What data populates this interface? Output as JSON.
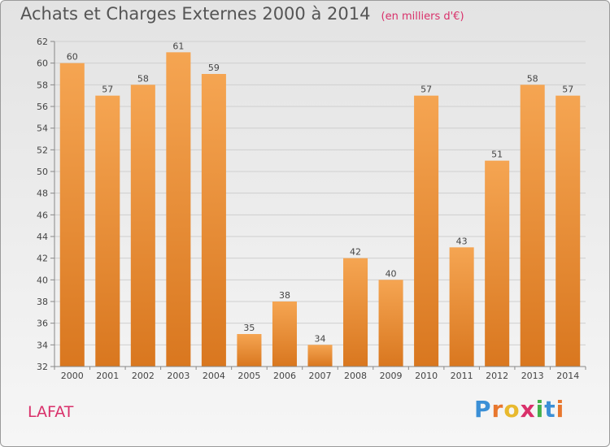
{
  "header": {
    "title": "Achats et Charges Externes 2000 à 2014",
    "unit": "(en milliers d'€)"
  },
  "footer": {
    "place": "LAFAT",
    "brand": "Proxiti",
    "brand_letters": [
      "P",
      "r",
      "o",
      "x",
      "i",
      "t",
      "i"
    ],
    "brand_colors": [
      "#3b8fd6",
      "#e8772e",
      "#e8b92e",
      "#d9306a",
      "#43b04a",
      "#3b8fd6",
      "#e8772e"
    ]
  },
  "chart_data": {
    "type": "bar",
    "categories": [
      "2000",
      "2001",
      "2002",
      "2003",
      "2004",
      "2005",
      "2006",
      "2007",
      "2008",
      "2009",
      "2010",
      "2011",
      "2012",
      "2013",
      "2014"
    ],
    "values": [
      60,
      57,
      58,
      61,
      59,
      35,
      38,
      34,
      42,
      40,
      57,
      43,
      51,
      58,
      57
    ],
    "ylim": [
      32,
      62
    ],
    "yticks": [
      32,
      34,
      36,
      38,
      40,
      42,
      44,
      46,
      48,
      50,
      52,
      54,
      56,
      58,
      60,
      62
    ],
    "grid": true,
    "bar_color_top": "#f5a552",
    "bar_color_bottom": "#d9771f"
  }
}
